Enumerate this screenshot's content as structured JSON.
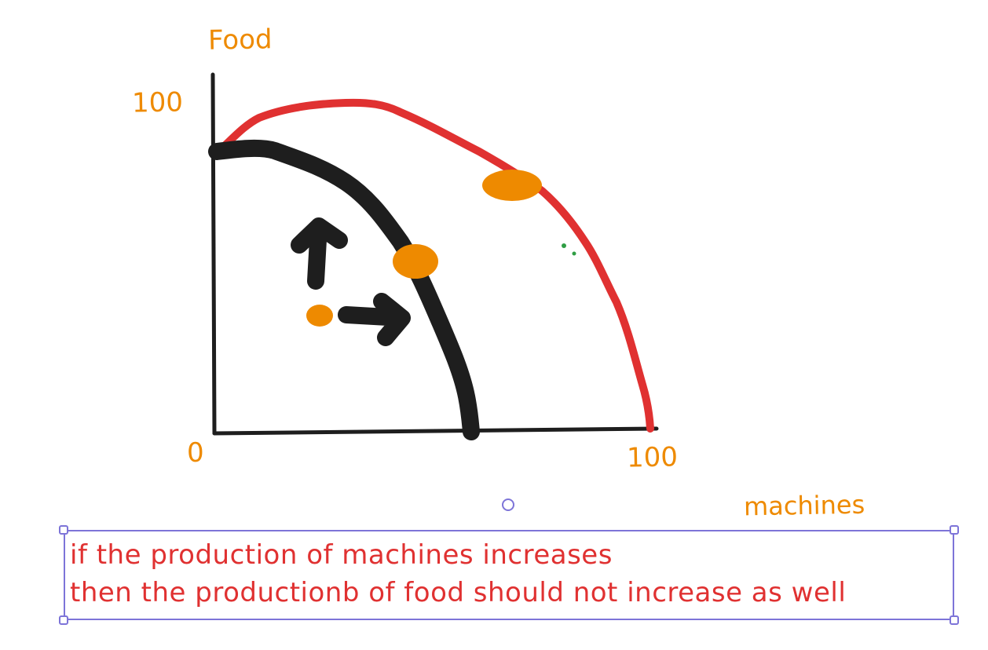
{
  "labels": {
    "y_axis": "Food",
    "y_max": "100",
    "origin": "0",
    "x_max": "100",
    "x_axis": "machines"
  },
  "note": {
    "lines": [
      "if the production of machines increases",
      "then the productionb of food should not increase as well"
    ]
  },
  "colors": {
    "axes": "#1e1e1e",
    "inner_curve": "#1e1e1e",
    "outer_curve": "#e03131",
    "labels": "#ee8a00",
    "dots": "#ee8a00",
    "note_text": "#e03131",
    "selection": "#7d74d8"
  }
}
